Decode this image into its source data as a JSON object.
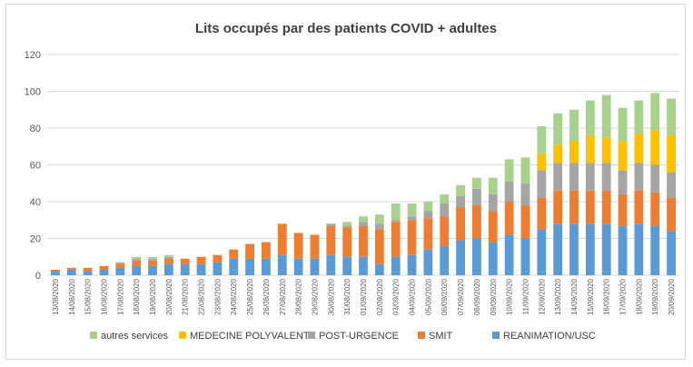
{
  "chart_data": {
    "type": "bar",
    "stacked": true,
    "title": "Lits occupés par des patients COVID + adultes",
    "xlabel": "",
    "ylabel": "",
    "ylim": [
      0,
      120
    ],
    "yticks": [
      0,
      20,
      40,
      60,
      80,
      100,
      120
    ],
    "grid": true,
    "legend_position": "bottom",
    "categories": [
      "13/08/2020",
      "14/08/2020",
      "15/08/2020",
      "16/08/2020",
      "17/08/2020",
      "18/08/2020",
      "19/08/2020",
      "20/08/2020",
      "21/08/2020",
      "22/08/2020",
      "23/08/2020",
      "24/08/2020",
      "25/08/2020",
      "26/08/2020",
      "27/08/2020",
      "28/08/2020",
      "29/08/2020",
      "30/08/2020",
      "31/08/2020",
      "01/09/2020",
      "02/09/2020",
      "03/09/2020",
      "04/09/2020",
      "05/09/2020",
      "06/09/2020",
      "07/09/2020",
      "08/09/2020",
      "09/09/2020",
      "10/09/2020",
      "11/09/2020",
      "12/09/2020",
      "13/09/2020",
      "14/09/2020",
      "15/09/2020",
      "16/09/2020",
      "17/09/2020",
      "18/09/2020",
      "19/09/2020",
      "20/09/2020"
    ],
    "series": [
      {
        "name": "REANIMATION/USC",
        "color": "#5b9bd5",
        "values": [
          2,
          3,
          2,
          3,
          4,
          5,
          5,
          6,
          6,
          6,
          7,
          9,
          9,
          9,
          11,
          9,
          9,
          11,
          10,
          10,
          6,
          10,
          11,
          14,
          16,
          19,
          20,
          18,
          22,
          20,
          25,
          28,
          28,
          28,
          28,
          27,
          28,
          27,
          24
        ]
      },
      {
        "name": "SMIT",
        "color": "#ed7d31",
        "values": [
          1,
          1,
          2,
          2,
          2,
          3,
          3,
          3,
          3,
          4,
          4,
          5,
          8,
          9,
          17,
          14,
          13,
          16,
          16,
          17,
          19,
          19,
          19,
          17,
          16,
          18,
          18,
          17,
          18,
          18,
          17,
          18,
          18,
          18,
          18,
          17,
          18,
          18,
          18
        ]
      },
      {
        "name": "POST-URGENCE",
        "color": "#a5a5a5",
        "values": [
          0,
          0,
          0,
          0,
          1,
          1,
          1,
          1,
          0,
          0,
          0,
          0,
          0,
          0,
          0,
          0,
          0,
          1,
          1,
          2,
          3,
          1,
          2,
          4,
          7,
          6,
          9,
          9,
          11,
          12,
          15,
          15,
          15,
          15,
          15,
          13,
          15,
          15,
          14
        ]
      },
      {
        "name": "MEDECINE POLYVALENTE",
        "color": "#ffc000",
        "values": [
          0,
          0,
          0,
          0,
          0,
          0,
          0,
          0,
          0,
          0,
          0,
          0,
          0,
          0,
          0,
          0,
          0,
          0,
          0,
          0,
          0,
          0,
          0,
          0,
          0,
          0,
          0,
          0,
          0,
          0,
          9,
          10,
          12,
          15,
          14,
          16,
          16,
          19,
          20
        ]
      },
      {
        "name": "autres services",
        "color": "#a9d18e",
        "values": [
          0,
          0,
          0,
          0,
          0,
          1,
          1,
          1,
          0,
          0,
          0,
          0,
          0,
          0,
          0,
          0,
          0,
          0,
          2,
          3,
          5,
          9,
          7,
          5,
          5,
          6,
          6,
          9,
          12,
          14,
          15,
          17,
          17,
          19,
          23,
          18,
          18,
          20,
          20
        ]
      }
    ]
  }
}
